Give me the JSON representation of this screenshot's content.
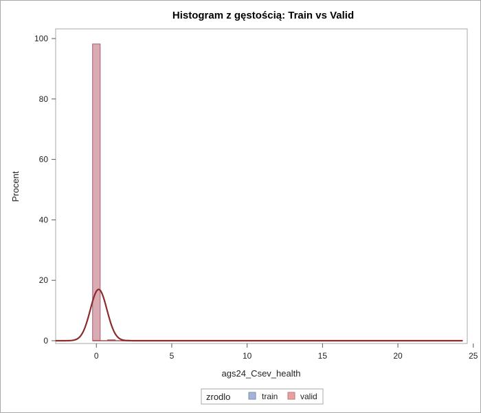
{
  "chart_data": {
    "type": "bar",
    "title": "Histogram z gęstością: Train vs Valid",
    "xlabel": "ags24_Csev_health",
    "ylabel": "Procent",
    "xlim": [
      -2.7,
      24.6
    ],
    "ylim": [
      0,
      100
    ],
    "x_ticks": [
      0,
      5,
      10,
      15,
      20,
      25
    ],
    "y_ticks": [
      0,
      20,
      40,
      60,
      80,
      100
    ],
    "bin_width": 0.5,
    "series": [
      {
        "name": "train",
        "color": "#a4b4d8",
        "bins": [
          {
            "x": 0.0,
            "value": 98.2
          },
          {
            "x": 1.0,
            "value": 0.3
          },
          {
            "x": 2.0,
            "value": 0.15
          }
        ]
      },
      {
        "name": "valid",
        "color": "#e8a0a0",
        "bins": [
          {
            "x": 0.0,
            "value": 98.2
          },
          {
            "x": 1.0,
            "value": 0.3
          },
          {
            "x": 2.0,
            "value": 0.15
          }
        ]
      }
    ],
    "density": {
      "name": "valid",
      "color": "#8b2a2a",
      "mean": 0.15,
      "sd": 0.55,
      "peak": 17.0
    },
    "legend": {
      "title": "zrodlo",
      "placement": "bottom",
      "items": [
        {
          "label": "train",
          "color": "#a4b4d8"
        },
        {
          "label": "valid",
          "color": "#e8a0a0"
        }
      ]
    },
    "grid": false
  }
}
